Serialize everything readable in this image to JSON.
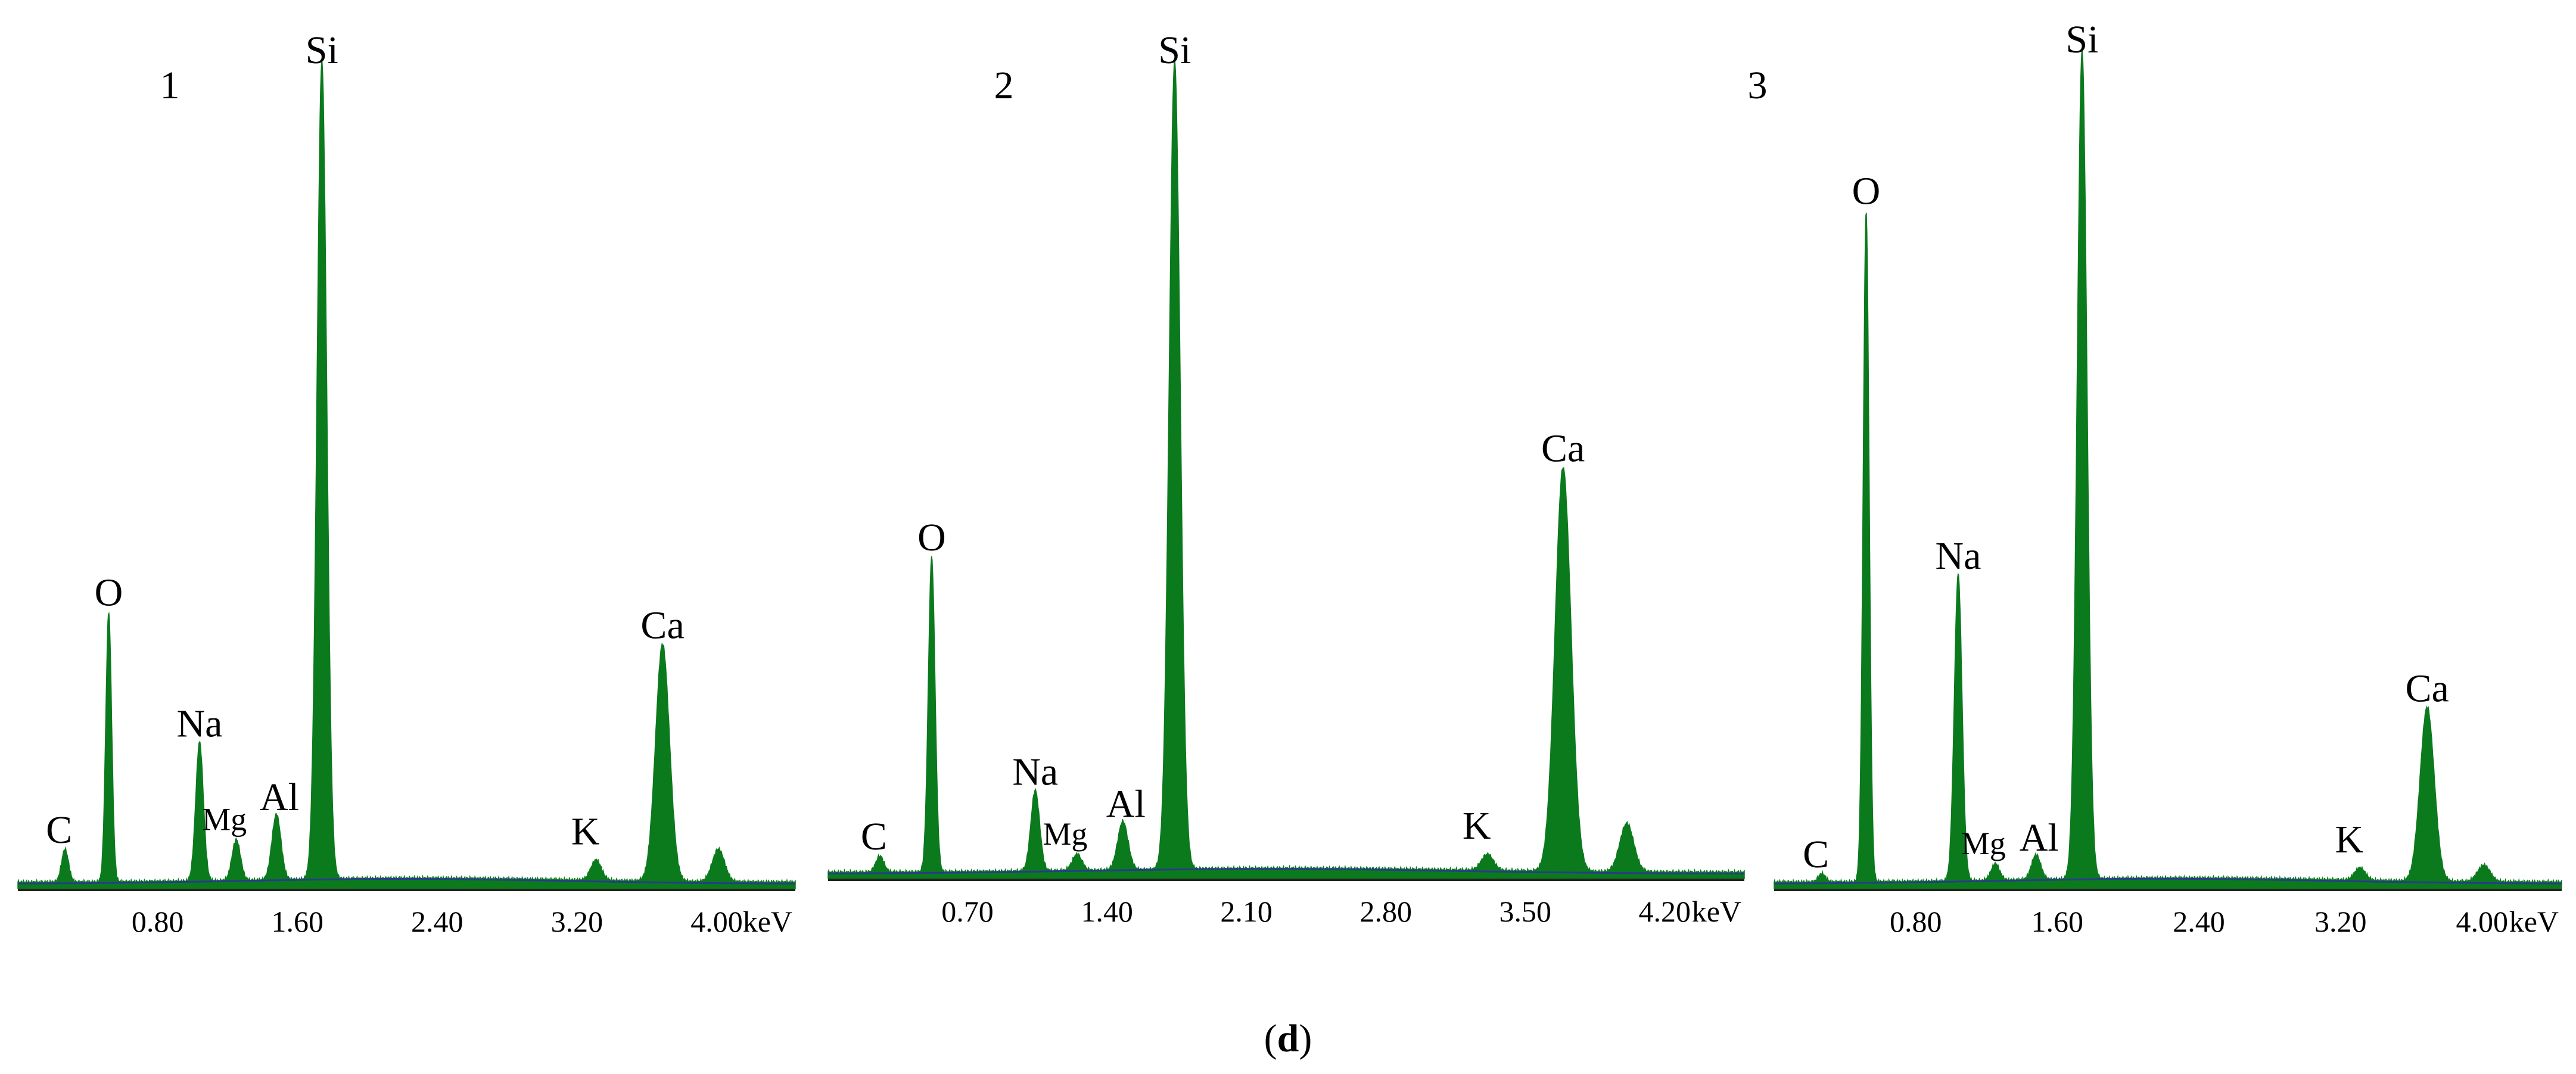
{
  "caption": {
    "open": "(",
    "letter": "d",
    "close": ")"
  },
  "colors": {
    "spectrum": "#0b7a1d",
    "background_line": "#2a3a8c",
    "axis": "#222222"
  },
  "chart_data": [
    {
      "type": "area",
      "panel_label": "1",
      "x_unit": "keV",
      "xlim": [
        0.0,
        4.45
      ],
      "ylim": [
        0,
        100
      ],
      "x_ticks": [
        0.8,
        1.6,
        2.4,
        3.2,
        4.0
      ],
      "x_tick_labels": [
        "0.80",
        "1.60",
        "2.40",
        "3.20",
        "4.00"
      ],
      "peaks": [
        {
          "element": "C",
          "x": 0.27,
          "height": 4,
          "width": 0.02
        },
        {
          "element": "O",
          "x": 0.52,
          "height": 33,
          "width": 0.017
        },
        {
          "element": "Na",
          "x": 1.04,
          "height": 17,
          "width": 0.022
        },
        {
          "element": "Mg",
          "x": 1.25,
          "height": 5,
          "width": 0.024
        },
        {
          "element": "Al",
          "x": 1.48,
          "height": 8,
          "width": 0.026
        },
        {
          "element": "Si",
          "x": 1.74,
          "height": 100,
          "width": 0.028
        },
        {
          "element": "K",
          "x": 3.31,
          "height": 2.5,
          "width": 0.03
        },
        {
          "element": "Ca",
          "x": 3.69,
          "height": 29,
          "width": 0.04
        },
        {
          "element": "",
          "x": 4.01,
          "height": 4,
          "width": 0.035
        }
      ]
    },
    {
      "type": "area",
      "panel_label": "2",
      "x_unit": "keV",
      "xlim": [
        0.0,
        4.6
      ],
      "ylim": [
        0,
        100
      ],
      "x_ticks": [
        0.7,
        1.4,
        2.1,
        2.8,
        3.5,
        4.2
      ],
      "x_tick_labels": [
        "0.70",
        "1.40",
        "2.10",
        "2.80",
        "3.50",
        "4.20"
      ],
      "peaks": [
        {
          "element": "C",
          "x": 0.26,
          "height": 2,
          "width": 0.02
        },
        {
          "element": "O",
          "x": 0.52,
          "height": 39,
          "width": 0.017
        },
        {
          "element": "Na",
          "x": 1.04,
          "height": 10,
          "width": 0.022
        },
        {
          "element": "Mg",
          "x": 1.25,
          "height": 2,
          "width": 0.024
        },
        {
          "element": "Al",
          "x": 1.48,
          "height": 6,
          "width": 0.026
        },
        {
          "element": "Si",
          "x": 1.74,
          "height": 100,
          "width": 0.028
        },
        {
          "element": "K",
          "x": 3.31,
          "height": 2,
          "width": 0.03
        },
        {
          "element": "Ca",
          "x": 3.69,
          "height": 50,
          "width": 0.04
        },
        {
          "element": "",
          "x": 4.01,
          "height": 6,
          "width": 0.035
        }
      ]
    },
    {
      "type": "area",
      "panel_label": "3",
      "x_unit": "keV",
      "xlim": [
        0.0,
        4.45
      ],
      "ylim": [
        0,
        100
      ],
      "x_ticks": [
        0.8,
        1.6,
        2.4,
        3.2,
        4.0
      ],
      "x_tick_labels": [
        "0.80",
        "1.60",
        "2.40",
        "3.20",
        "4.00"
      ],
      "peaks": [
        {
          "element": "C",
          "x": 0.27,
          "height": 1,
          "width": 0.02
        },
        {
          "element": "O",
          "x": 0.52,
          "height": 81,
          "width": 0.017
        },
        {
          "element": "Na",
          "x": 1.04,
          "height": 37,
          "width": 0.022
        },
        {
          "element": "Mg",
          "x": 1.25,
          "height": 2,
          "width": 0.024
        },
        {
          "element": "Al",
          "x": 1.48,
          "height": 3,
          "width": 0.026
        },
        {
          "element": "Si",
          "x": 1.74,
          "height": 100,
          "width": 0.028
        },
        {
          "element": "K",
          "x": 3.31,
          "height": 1.5,
          "width": 0.03
        },
        {
          "element": "Ca",
          "x": 3.69,
          "height": 21,
          "width": 0.04
        },
        {
          "element": "",
          "x": 4.01,
          "height": 2,
          "width": 0.035
        }
      ]
    }
  ]
}
